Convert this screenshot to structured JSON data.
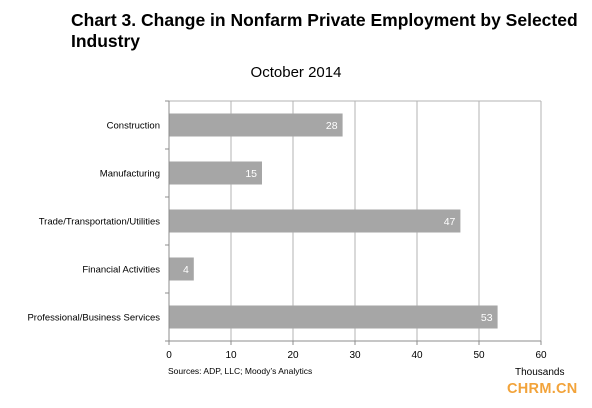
{
  "title": "Chart 3. Change in Nonfarm Private Employment by Selected Industry",
  "subtitle": "October 2014",
  "source": "Sources: ADP, LLC; Moody’s Analytics",
  "unit_label": "Thousands",
  "watermark": "CHRM.CN",
  "colors": {
    "bar": "#a6a6a6",
    "bar_label": "#ffffff",
    "grid": "#b3b3b3",
    "axis": "#8c8c8c"
  },
  "chart_data": {
    "type": "bar",
    "orientation": "horizontal",
    "title": "Chart 3. Change in Nonfarm Private Employment by Selected Industry",
    "subtitle": "October 2014",
    "categories": [
      "Construction",
      "Manufacturing",
      "Trade/Transportation/Utilities",
      "Financial Activities",
      "Professional/Business Services"
    ],
    "values": [
      28,
      15,
      47,
      4,
      53
    ],
    "data_labels": [
      "28",
      "15",
      "47",
      "4",
      "53"
    ],
    "xlabel": "Thousands",
    "xlim": [
      0,
      60
    ],
    "xticks": [
      0,
      10,
      20,
      30,
      40,
      50,
      60
    ],
    "grid": true,
    "legend": false
  }
}
